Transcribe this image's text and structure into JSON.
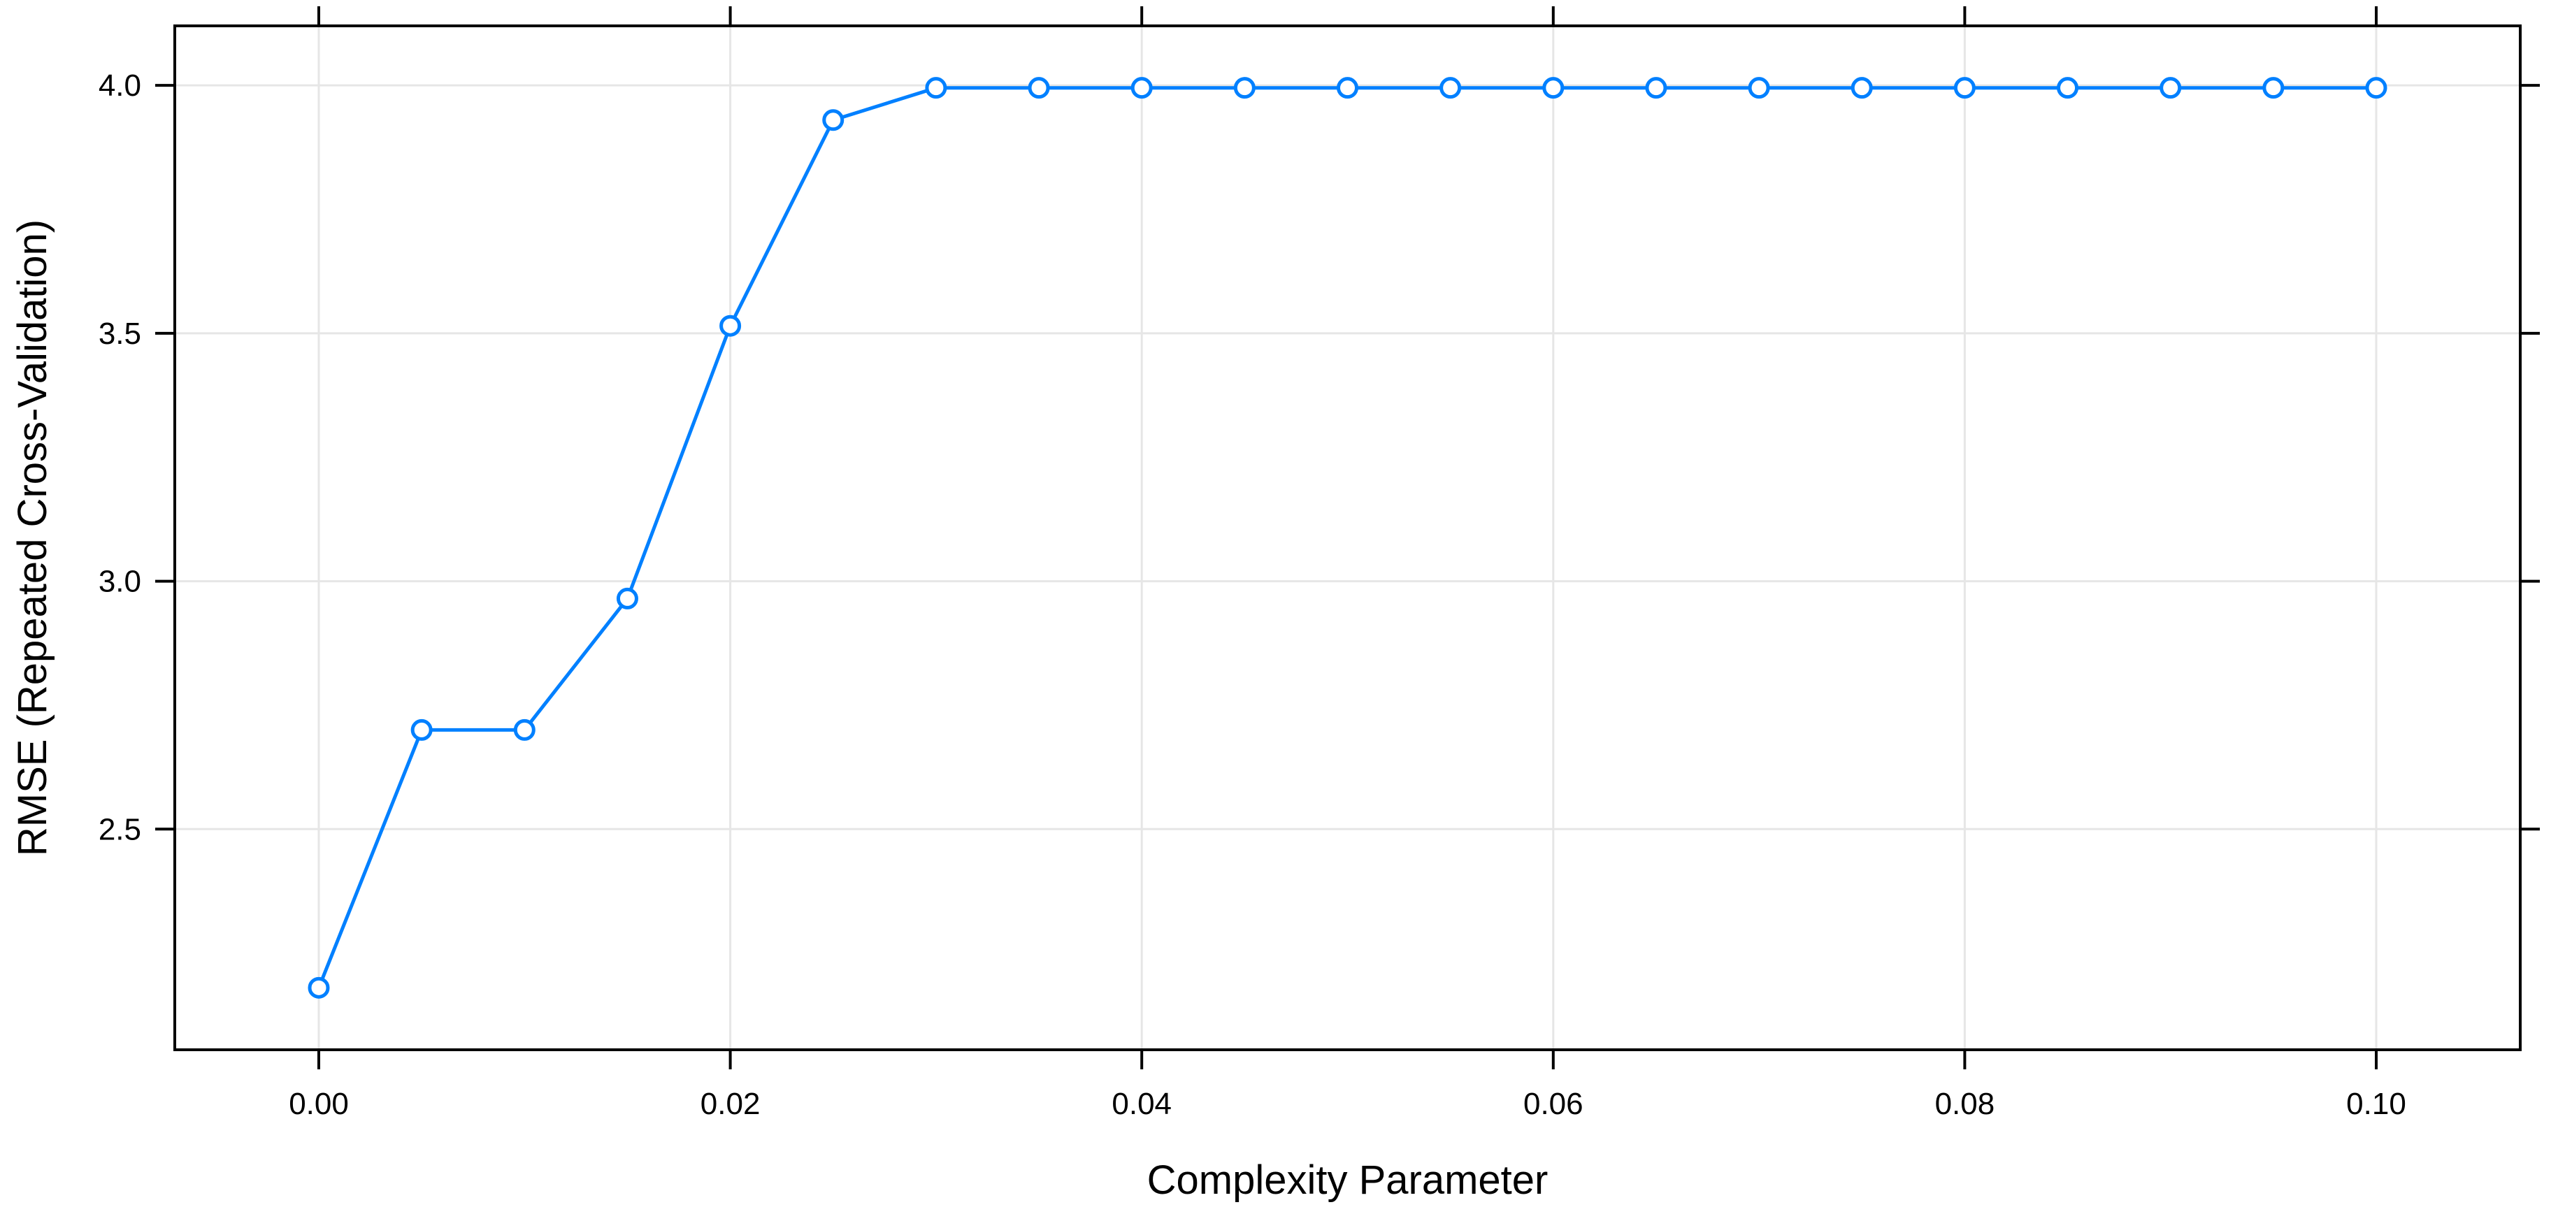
{
  "chart_data": {
    "type": "line",
    "title": "",
    "xlabel": "Complexity Parameter",
    "ylabel": "RMSE (Repeated Cross-Validation)",
    "x": [
      0.0,
      0.005,
      0.01,
      0.015,
      0.02,
      0.025,
      0.03,
      0.035,
      0.04,
      0.045,
      0.05,
      0.055,
      0.06,
      0.065,
      0.07,
      0.075,
      0.08,
      0.085,
      0.09,
      0.095,
      0.1
    ],
    "series": [
      {
        "values": [
          2.18,
          2.7,
          2.7,
          2.965,
          3.515,
          3.93,
          3.995,
          3.995,
          3.995,
          3.995,
          3.995,
          3.995,
          3.995,
          3.995,
          3.995,
          3.995,
          3.995,
          3.995,
          3.995,
          3.995,
          3.995
        ]
      }
    ],
    "xticks": [
      0.0,
      0.02,
      0.04,
      0.06,
      0.08,
      0.1
    ],
    "xtick_labels": [
      "0.00",
      "0.02",
      "0.04",
      "0.06",
      "0.08",
      "0.10"
    ],
    "yticks": [
      2.5,
      3.0,
      3.5,
      4.0
    ],
    "ytick_labels": [
      "2.5",
      "3.0",
      "3.5",
      "4.0"
    ],
    "xlim": [
      -0.007,
      0.107
    ],
    "ylim": [
      2.055,
      4.12
    ],
    "grid": true,
    "colors": {
      "series": "#0080ff",
      "grid": "#e6e6e6",
      "axis": "#000000"
    },
    "marker": "open-circle"
  }
}
